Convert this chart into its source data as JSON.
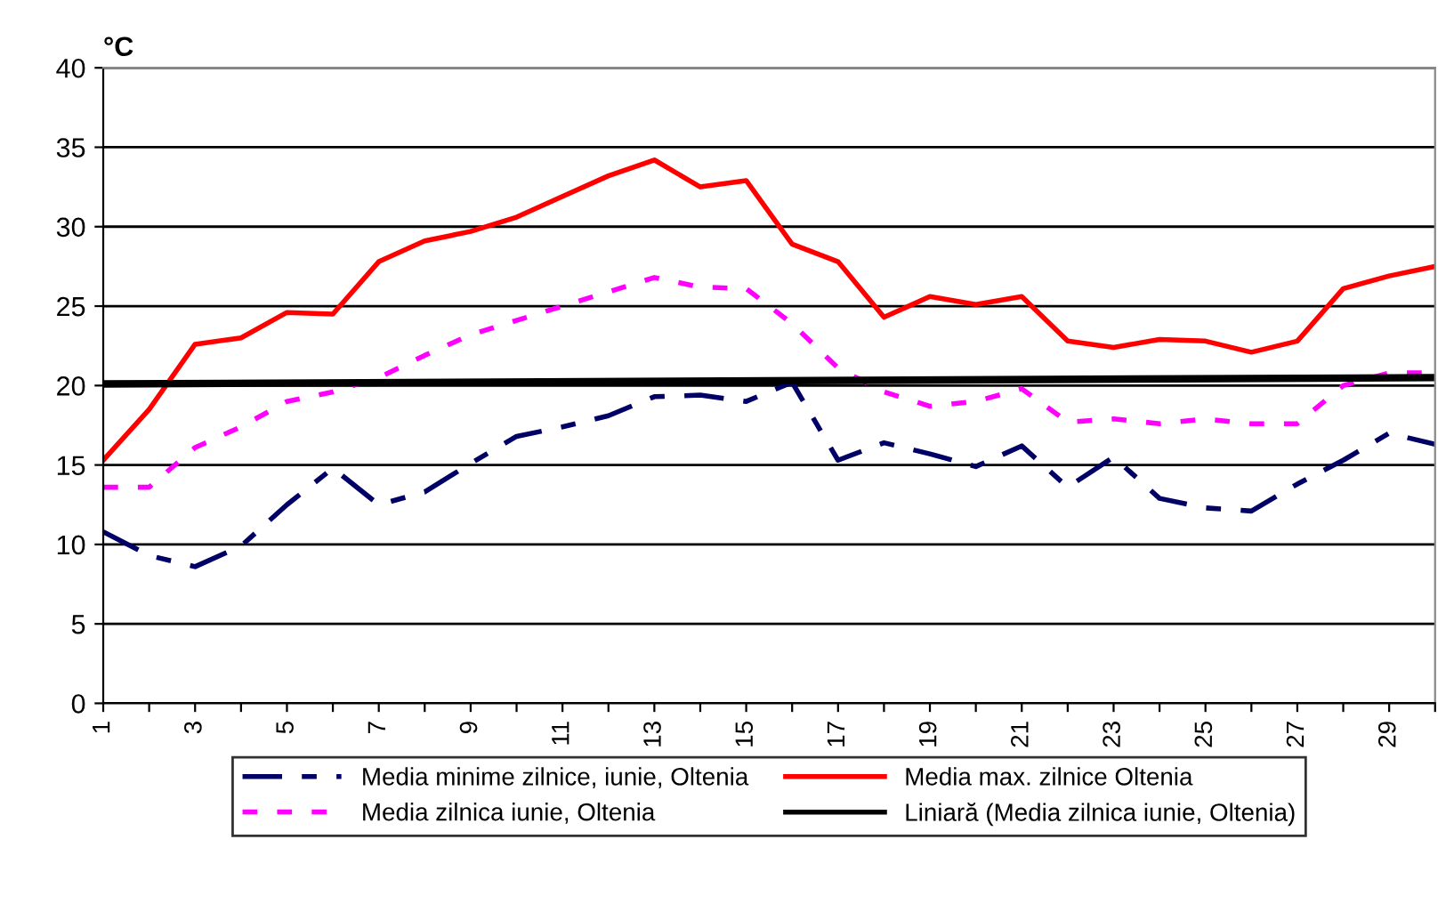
{
  "chart_data": {
    "type": "line",
    "ylabel": "°C",
    "x": [
      1,
      2,
      3,
      4,
      5,
      6,
      7,
      8,
      9,
      10,
      11,
      12,
      13,
      14,
      15,
      16,
      17,
      18,
      19,
      20,
      21,
      22,
      23,
      24,
      25,
      26,
      27,
      28,
      29,
      30
    ],
    "series": [
      {
        "name": "Media minime zilnice, iunie, Oltenia",
        "color": "#000066",
        "line_style": "dashed",
        "values": [
          10.8,
          9.3,
          8.6,
          9.9,
          12.5,
          14.8,
          12.5,
          13.3,
          15.1,
          16.8,
          17.4,
          18.1,
          19.3,
          19.4,
          19.0,
          20.2,
          15.3,
          16.4,
          15.7,
          14.9,
          16.2,
          13.6,
          15.5,
          12.9,
          12.3,
          12.1,
          13.8,
          15.3,
          17.0,
          16.3
        ]
      },
      {
        "name": "Media zilnica iunie, Oltenia",
        "color": "#ff00ff",
        "line_style": "dotted",
        "values": [
          13.6,
          13.6,
          16.1,
          17.4,
          19.0,
          19.6,
          20.5,
          21.9,
          23.2,
          24.1,
          25.0,
          25.9,
          26.8,
          26.2,
          26.1,
          23.9,
          21.1,
          19.6,
          18.7,
          19.0,
          19.8,
          17.7,
          17.9,
          17.6,
          17.9,
          17.6,
          17.6,
          20.0,
          20.8,
          20.8
        ]
      },
      {
        "name": "Media max. zilnice Oltenia",
        "color": "#ff0000",
        "line_style": "solid",
        "values": [
          15.3,
          18.5,
          22.6,
          23.0,
          24.6,
          24.5,
          27.8,
          29.1,
          29.7,
          30.6,
          31.9,
          33.2,
          34.2,
          32.5,
          32.9,
          28.9,
          27.8,
          24.3,
          25.6,
          25.1,
          25.6,
          22.8,
          22.4,
          22.9,
          22.8,
          22.1,
          22.8,
          26.1,
          26.9,
          27.5
        ]
      },
      {
        "name": "Liniară (Media zilnica iunie, Oltenia)",
        "color": "#000000",
        "line_style": "solid",
        "x": [
          1,
          30
        ],
        "values": [
          20.1,
          20.5
        ]
      }
    ],
    "xlim": [
      1,
      30
    ],
    "xticks": [
      {
        "value": 1,
        "label": "1"
      },
      {
        "value": 2,
        "label": null
      },
      {
        "value": 3,
        "label": "3"
      },
      {
        "value": 4,
        "label": null
      },
      {
        "value": 5,
        "label": "5"
      },
      {
        "value": 6,
        "label": null
      },
      {
        "value": 7,
        "label": "7"
      },
      {
        "value": 8,
        "label": null
      },
      {
        "value": 9,
        "label": "9"
      },
      {
        "value": 10,
        "label": null
      },
      {
        "value": 11,
        "label": "11"
      },
      {
        "value": 12,
        "label": null
      },
      {
        "value": 13,
        "label": "13"
      },
      {
        "value": 14,
        "label": null
      },
      {
        "value": 15,
        "label": "15"
      },
      {
        "value": 16,
        "label": null
      },
      {
        "value": 17,
        "label": "17"
      },
      {
        "value": 18,
        "label": null
      },
      {
        "value": 19,
        "label": "19"
      },
      {
        "value": 20,
        "label": null
      },
      {
        "value": 21,
        "label": "21"
      },
      {
        "value": 22,
        "label": null
      },
      {
        "value": 23,
        "label": "23"
      },
      {
        "value": 24,
        "label": null
      },
      {
        "value": 25,
        "label": "25"
      },
      {
        "value": 26,
        "label": null
      },
      {
        "value": 27,
        "label": "27"
      },
      {
        "value": 28,
        "label": null
      },
      {
        "value": 29,
        "label": "29"
      },
      {
        "value": 30,
        "label": null
      }
    ],
    "ylim": [
      0,
      40
    ],
    "yticks": [
      0,
      5,
      10,
      15,
      20,
      25,
      30,
      35,
      40
    ],
    "grid": "y",
    "legend": "bottom",
    "marker": "none"
  }
}
